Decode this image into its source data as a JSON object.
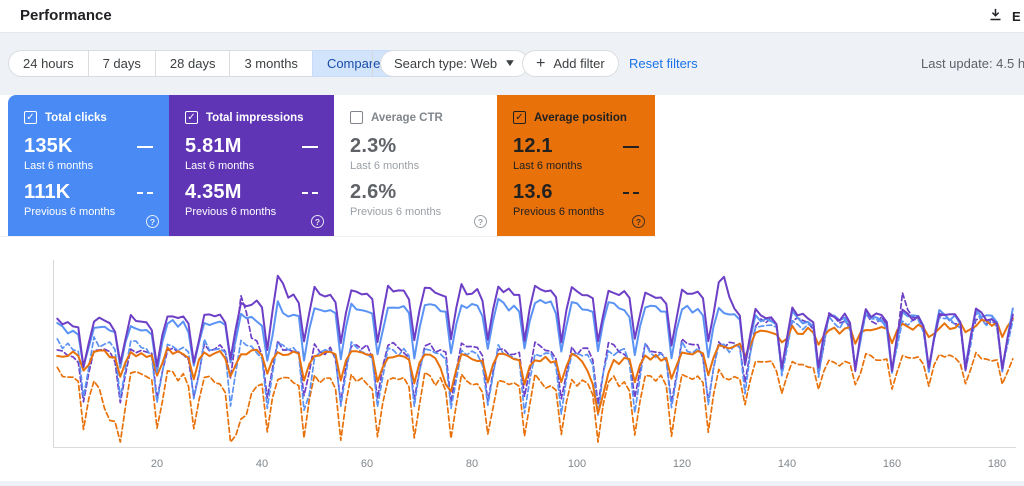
{
  "header": {
    "title": "Performance",
    "export_label": "E"
  },
  "toolbar": {
    "date_tabs": [
      {
        "label": "24 hours",
        "selected": false
      },
      {
        "label": "7 days",
        "selected": false
      },
      {
        "label": "28 days",
        "selected": false
      },
      {
        "label": "3 months",
        "selected": false
      },
      {
        "label": "Compare",
        "selected": true,
        "has_caret": true
      }
    ],
    "search_type_label": "Search type: Web",
    "add_filter_label": "Add filter",
    "reset_filters_label": "Reset filters",
    "last_update": "Last update: 4.5 h"
  },
  "cards": [
    {
      "label": "Total clicks",
      "checked": true,
      "value_now": "135K",
      "period_now": "Last 6 months",
      "value_prev": "111K",
      "period_prev": "Previous 6 months",
      "help": "?",
      "bg": "#4a8af4",
      "fg": "#ffffff",
      "title_color": "#ffffff",
      "sub": "#ffffff",
      "help_color": "rgba(255,255,255,0.85)"
    },
    {
      "label": "Total impressions",
      "checked": true,
      "value_now": "5.81M",
      "period_now": "Last 6 months",
      "value_prev": "4.35M",
      "period_prev": "Previous 6 months",
      "help": "?",
      "bg": "#5f35b5",
      "fg": "#ffffff",
      "title_color": "#ffffff",
      "sub": "#ffffff",
      "help_color": "rgba(255,255,255,0.85)"
    },
    {
      "label": "Average CTR",
      "checked": false,
      "value_now": "2.3%",
      "period_now": "Last 6 months",
      "value_prev": "2.6%",
      "period_prev": "Previous 6 months",
      "help": "?",
      "bg": "#ffffff",
      "fg": "#5f6368",
      "title_color": "#80868b",
      "sub": "#9aa0a6",
      "help_color": "#9aa0a6"
    },
    {
      "label": "Average position",
      "checked": true,
      "value_now": "12.1",
      "period_now": "Last 6 months",
      "value_prev": "13.6",
      "period_prev": "Previous 6 months",
      "help": "?",
      "bg": "#e8710a",
      "fg": "#212121",
      "title_color": "#212121",
      "sub": "#212121",
      "help_color": "rgba(33,33,33,0.8)"
    }
  ],
  "chart_data": {
    "type": "line",
    "title": "",
    "xlabel": "",
    "ylabel": "",
    "xlabel_ticks": [
      20,
      40,
      60,
      80,
      100,
      120,
      140,
      160,
      180
    ],
    "x_range": [
      1,
      183
    ],
    "grid": false,
    "y_axis_labels_visible": false,
    "legend_position": "none (encoded in metric cards above)",
    "note": "Daily values over ~6 months vs previous 6 months; y-axis unlabeled in UI, so series are expressed as screen-pixel levels (smaller y = higher value). y = level(d) + depth(d)*weekly_dip_pattern[d%7] + events + noise; x_px = 52 + 5.25*d.",
    "weekly_dip_pattern": [
      0.45,
      0,
      0.05,
      0.1,
      0.08,
      0.2,
      1
    ],
    "series": [
      {
        "name": "Average position — Previous 6 months",
        "metric": "position",
        "period": "previous",
        "summary_value": "13.6",
        "color": "#e8710a",
        "style": "dashed",
        "seed": 101,
        "noise": 5,
        "level_keypoints": [
          [
            1,
            371
          ],
          [
            40,
            375
          ],
          [
            100,
            378
          ],
          [
            128,
            372
          ],
          [
            136,
            361
          ],
          [
            183,
            355
          ]
        ],
        "depth_keypoints": [
          [
            1,
            55
          ],
          [
            30,
            60
          ],
          [
            126,
            60
          ],
          [
            136,
            28
          ],
          [
            183,
            28
          ]
        ],
        "events": [
          {
            "d": 11,
            "dy": 45,
            "w": 2
          },
          {
            "d": 36,
            "dy": 48,
            "w": 2
          },
          {
            "d": 104,
            "dy": 5,
            "w": 2
          }
        ]
      },
      {
        "name": "Total impressions — Previous 6 months",
        "metric": "impressions",
        "period": "previous",
        "summary_value": "4.35M",
        "color": "#6d3fc6",
        "style": "dashed",
        "seed": 102,
        "noise": 5,
        "level_keypoints": [
          [
            1,
            348
          ],
          [
            60,
            344
          ],
          [
            100,
            347
          ],
          [
            128,
            342
          ],
          [
            136,
            318
          ],
          [
            183,
            315
          ]
        ],
        "depth_keypoints": [
          [
            1,
            52
          ],
          [
            126,
            56
          ],
          [
            136,
            55
          ],
          [
            183,
            55
          ]
        ],
        "events": [
          {
            "d": 36,
            "dy": -46,
            "w": 2
          },
          {
            "d": 162,
            "dy": -20,
            "w": 1
          }
        ]
      },
      {
        "name": "Total clicks — Previous 6 months",
        "metric": "clicks",
        "period": "previous",
        "summary_value": "111K",
        "color": "#5b93f5",
        "style": "dashed",
        "seed": 103,
        "noise": 5,
        "level_keypoints": [
          [
            1,
            341
          ],
          [
            60,
            347
          ],
          [
            100,
            350
          ],
          [
            128,
            345
          ],
          [
            136,
            320
          ],
          [
            183,
            317
          ]
        ],
        "depth_keypoints": [
          [
            1,
            58
          ],
          [
            126,
            62
          ],
          [
            136,
            54
          ],
          [
            183,
            54
          ]
        ],
        "events": [
          {
            "d": 49,
            "dy": 22,
            "w": 1
          }
        ]
      },
      {
        "name": "Average position — Last 6 months",
        "metric": "position",
        "period": "last",
        "summary_value": "12.1",
        "color": "#e8710a",
        "style": "solid",
        "seed": 104,
        "noise": 4,
        "level_keypoints": [
          [
            1,
            352
          ],
          [
            40,
            351
          ],
          [
            80,
            356
          ],
          [
            110,
            358
          ],
          [
            126,
            350
          ],
          [
            136,
            330
          ],
          [
            160,
            328
          ],
          [
            183,
            321
          ]
        ],
        "depth_keypoints": [
          [
            1,
            22
          ],
          [
            40,
            25
          ],
          [
            126,
            25
          ],
          [
            136,
            12
          ],
          [
            183,
            12
          ]
        ],
        "events": [
          {
            "d": 75,
            "dy": 25,
            "w": 1
          },
          {
            "d": 104,
            "dy": 30,
            "w": 2
          }
        ]
      },
      {
        "name": "Total clicks — Last 6 months",
        "metric": "clicks",
        "period": "last",
        "summary_value": "135K",
        "color": "#5b93f5",
        "style": "solid",
        "seed": 105,
        "noise": 4,
        "level_keypoints": [
          [
            1,
            326
          ],
          [
            30,
            320
          ],
          [
            50,
            307
          ],
          [
            95,
            301
          ],
          [
            126,
            307
          ],
          [
            134,
            315
          ],
          [
            183,
            312
          ]
        ],
        "depth_keypoints": [
          [
            1,
            42
          ],
          [
            40,
            50
          ],
          [
            126,
            50
          ],
          [
            134,
            57
          ],
          [
            183,
            57
          ]
        ],
        "events": [
          {
            "d": 43,
            "dy": -8,
            "w": 1
          }
        ]
      },
      {
        "name": "Total impressions — Last 6 months",
        "metric": "impressions",
        "period": "last",
        "summary_value": "5.81M",
        "color": "#6d3fc6",
        "style": "solid",
        "seed": 106,
        "noise": 4,
        "level_keypoints": [
          [
            1,
            321
          ],
          [
            30,
            314
          ],
          [
            45,
            291
          ],
          [
            90,
            287
          ],
          [
            126,
            291
          ],
          [
            134,
            311
          ],
          [
            183,
            311
          ]
        ],
        "depth_keypoints": [
          [
            1,
            46
          ],
          [
            40,
            52
          ],
          [
            126,
            52
          ],
          [
            134,
            60
          ],
          [
            183,
            60
          ]
        ],
        "events": [
          {
            "d": 43,
            "dy": -22,
            "w": 1
          },
          {
            "d": 128,
            "dy": -24,
            "w": 1
          }
        ]
      }
    ]
  }
}
